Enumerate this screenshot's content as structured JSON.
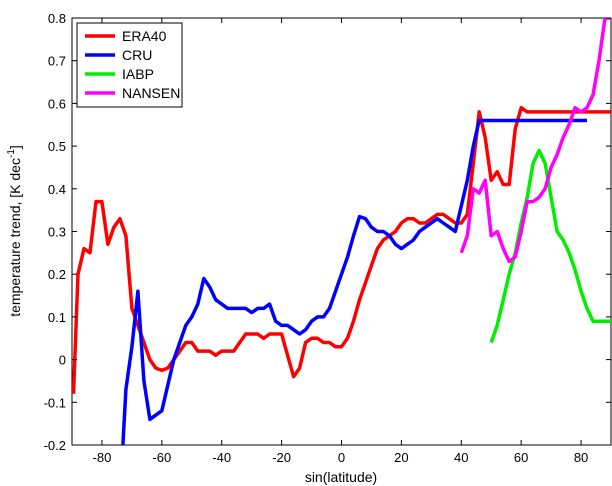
{
  "chart_data": {
    "type": "line",
    "xlabel": "sin(latitude)",
    "ylabel_main": "temperature trend, [K dec",
    "ylabel_sup": "-1",
    "ylabel_close": "]",
    "xlim": [
      -90,
      90
    ],
    "ylim": [
      -0.2,
      0.8
    ],
    "xticks": [
      -80,
      -60,
      -40,
      -20,
      0,
      20,
      40,
      60,
      80
    ],
    "yticks": [
      -0.2,
      -0.1,
      0,
      0.1,
      0.2,
      0.3,
      0.4,
      0.5,
      0.6,
      0.7,
      0.8
    ],
    "ytick_labels": [
      "-0.2",
      "-0.1",
      "0",
      "0.1",
      "0.2",
      "0.3",
      "0.4",
      "0.5",
      "0.6",
      "0.7",
      "0.8"
    ],
    "grid": false,
    "legend_position": "top-left",
    "series": [
      {
        "name": "ERA40",
        "color": "#ff0000",
        "x": [
          -89.5,
          -88,
          -86,
          -84,
          -82,
          -80,
          -78,
          -76,
          -74,
          -72,
          -70,
          -68,
          -66,
          -64,
          -62,
          -60,
          -58,
          -56,
          -54,
          -52,
          -50,
          -48,
          -46,
          -44,
          -42,
          -40,
          -38,
          -36,
          -34,
          -32,
          -30,
          -28,
          -26,
          -24,
          -22,
          -20,
          -18,
          -16,
          -14,
          -12,
          -10,
          -8,
          -6,
          -4,
          -2,
          0,
          2,
          4,
          6,
          8,
          10,
          12,
          14,
          16,
          18,
          20,
          22,
          24,
          26,
          28,
          30,
          32,
          34,
          36,
          38,
          40,
          42,
          44,
          46,
          48,
          50,
          52,
          54,
          56,
          58,
          60,
          62,
          64,
          66,
          68,
          70,
          72,
          74,
          76,
          78,
          80,
          82,
          84,
          86,
          88,
          90
        ],
        "y": [
          -0.08,
          0.2,
          0.26,
          0.25,
          0.37,
          0.37,
          0.27,
          0.31,
          0.33,
          0.29,
          0.12,
          0.08,
          0.04,
          0.0,
          -0.02,
          -0.025,
          -0.02,
          0.0,
          0.02,
          0.04,
          0.04,
          0.02,
          0.02,
          0.02,
          0.01,
          0.02,
          0.02,
          0.02,
          0.04,
          0.06,
          0.06,
          0.06,
          0.05,
          0.06,
          0.06,
          0.06,
          0.01,
          -0.04,
          -0.02,
          0.04,
          0.05,
          0.05,
          0.04,
          0.04,
          0.03,
          0.03,
          0.05,
          0.09,
          0.14,
          0.18,
          0.22,
          0.26,
          0.28,
          0.29,
          0.3,
          0.32,
          0.33,
          0.33,
          0.32,
          0.32,
          0.33,
          0.34,
          0.34,
          0.33,
          0.32,
          0.32,
          0.34,
          0.46,
          0.58,
          0.52,
          0.42,
          0.44,
          0.41,
          0.41,
          0.54,
          0.59,
          0.58,
          0.58,
          0.58,
          0.58,
          0.58,
          0.58,
          0.58,
          0.58,
          0.58,
          0.58,
          0.58,
          0.58,
          0.58,
          0.58,
          0.58
        ]
      },
      {
        "name": "CRU",
        "color": "#0000ff",
        "x": [
          -73,
          -72,
          -70,
          -68,
          -66,
          -64,
          -62,
          -60,
          -58,
          -56,
          -54,
          -52,
          -50,
          -48,
          -46,
          -44,
          -42,
          -40,
          -38,
          -36,
          -34,
          -32,
          -30,
          -28,
          -26,
          -24,
          -22,
          -20,
          -18,
          -16,
          -14,
          -12,
          -10,
          -8,
          -6,
          -4,
          -2,
          0,
          2,
          4,
          6,
          8,
          10,
          12,
          14,
          16,
          18,
          20,
          22,
          24,
          26,
          28,
          30,
          32,
          34,
          36,
          38,
          40,
          42,
          44,
          46,
          48,
          50,
          52,
          54,
          56,
          58,
          60,
          62,
          64,
          66,
          68,
          70,
          72,
          74,
          76,
          78,
          80,
          82
        ],
        "y": [
          -0.2,
          -0.07,
          0.03,
          0.16,
          -0.05,
          -0.14,
          -0.13,
          -0.12,
          -0.06,
          0.0,
          0.04,
          0.08,
          0.1,
          0.13,
          0.19,
          0.17,
          0.14,
          0.13,
          0.12,
          0.12,
          0.12,
          0.12,
          0.11,
          0.12,
          0.12,
          0.13,
          0.09,
          0.08,
          0.08,
          0.07,
          0.06,
          0.07,
          0.09,
          0.1,
          0.1,
          0.12,
          0.16,
          0.2,
          0.24,
          0.29,
          0.335,
          0.33,
          0.31,
          0.3,
          0.3,
          0.29,
          0.27,
          0.26,
          0.27,
          0.28,
          0.3,
          0.31,
          0.32,
          0.33,
          0.32,
          0.31,
          0.3,
          0.36,
          0.42,
          0.5,
          0.56,
          0.56,
          0.56,
          0.56,
          0.56,
          0.56,
          0.56,
          0.56,
          0.56,
          0.56,
          0.56,
          0.56,
          0.56,
          0.56,
          0.56,
          0.56,
          0.56,
          0.56,
          0.56
        ]
      },
      {
        "name": "IABP",
        "color": "#00ee00",
        "x": [
          50,
          52,
          54,
          56,
          58,
          60,
          62,
          64,
          66,
          68,
          70,
          72,
          74,
          76,
          78,
          80,
          82,
          84,
          86,
          88,
          90
        ],
        "y": [
          0.04,
          0.08,
          0.14,
          0.2,
          0.25,
          0.32,
          0.38,
          0.46,
          0.49,
          0.46,
          0.38,
          0.3,
          0.28,
          0.25,
          0.21,
          0.16,
          0.12,
          0.09,
          0.09,
          0.09,
          0.09
        ]
      },
      {
        "name": "NANSEN",
        "color": "#ff00ff",
        "x": [
          40,
          42,
          44,
          46,
          48,
          50,
          52,
          54,
          56,
          58,
          60,
          62,
          64,
          66,
          68,
          70,
          72,
          74,
          76,
          78,
          80,
          82,
          84,
          86,
          88,
          90
        ],
        "y": [
          0.25,
          0.29,
          0.4,
          0.39,
          0.42,
          0.29,
          0.3,
          0.26,
          0.23,
          0.24,
          0.3,
          0.37,
          0.37,
          0.38,
          0.4,
          0.45,
          0.48,
          0.52,
          0.55,
          0.59,
          0.58,
          0.59,
          0.62,
          0.7,
          0.8,
          0.8
        ]
      }
    ]
  }
}
